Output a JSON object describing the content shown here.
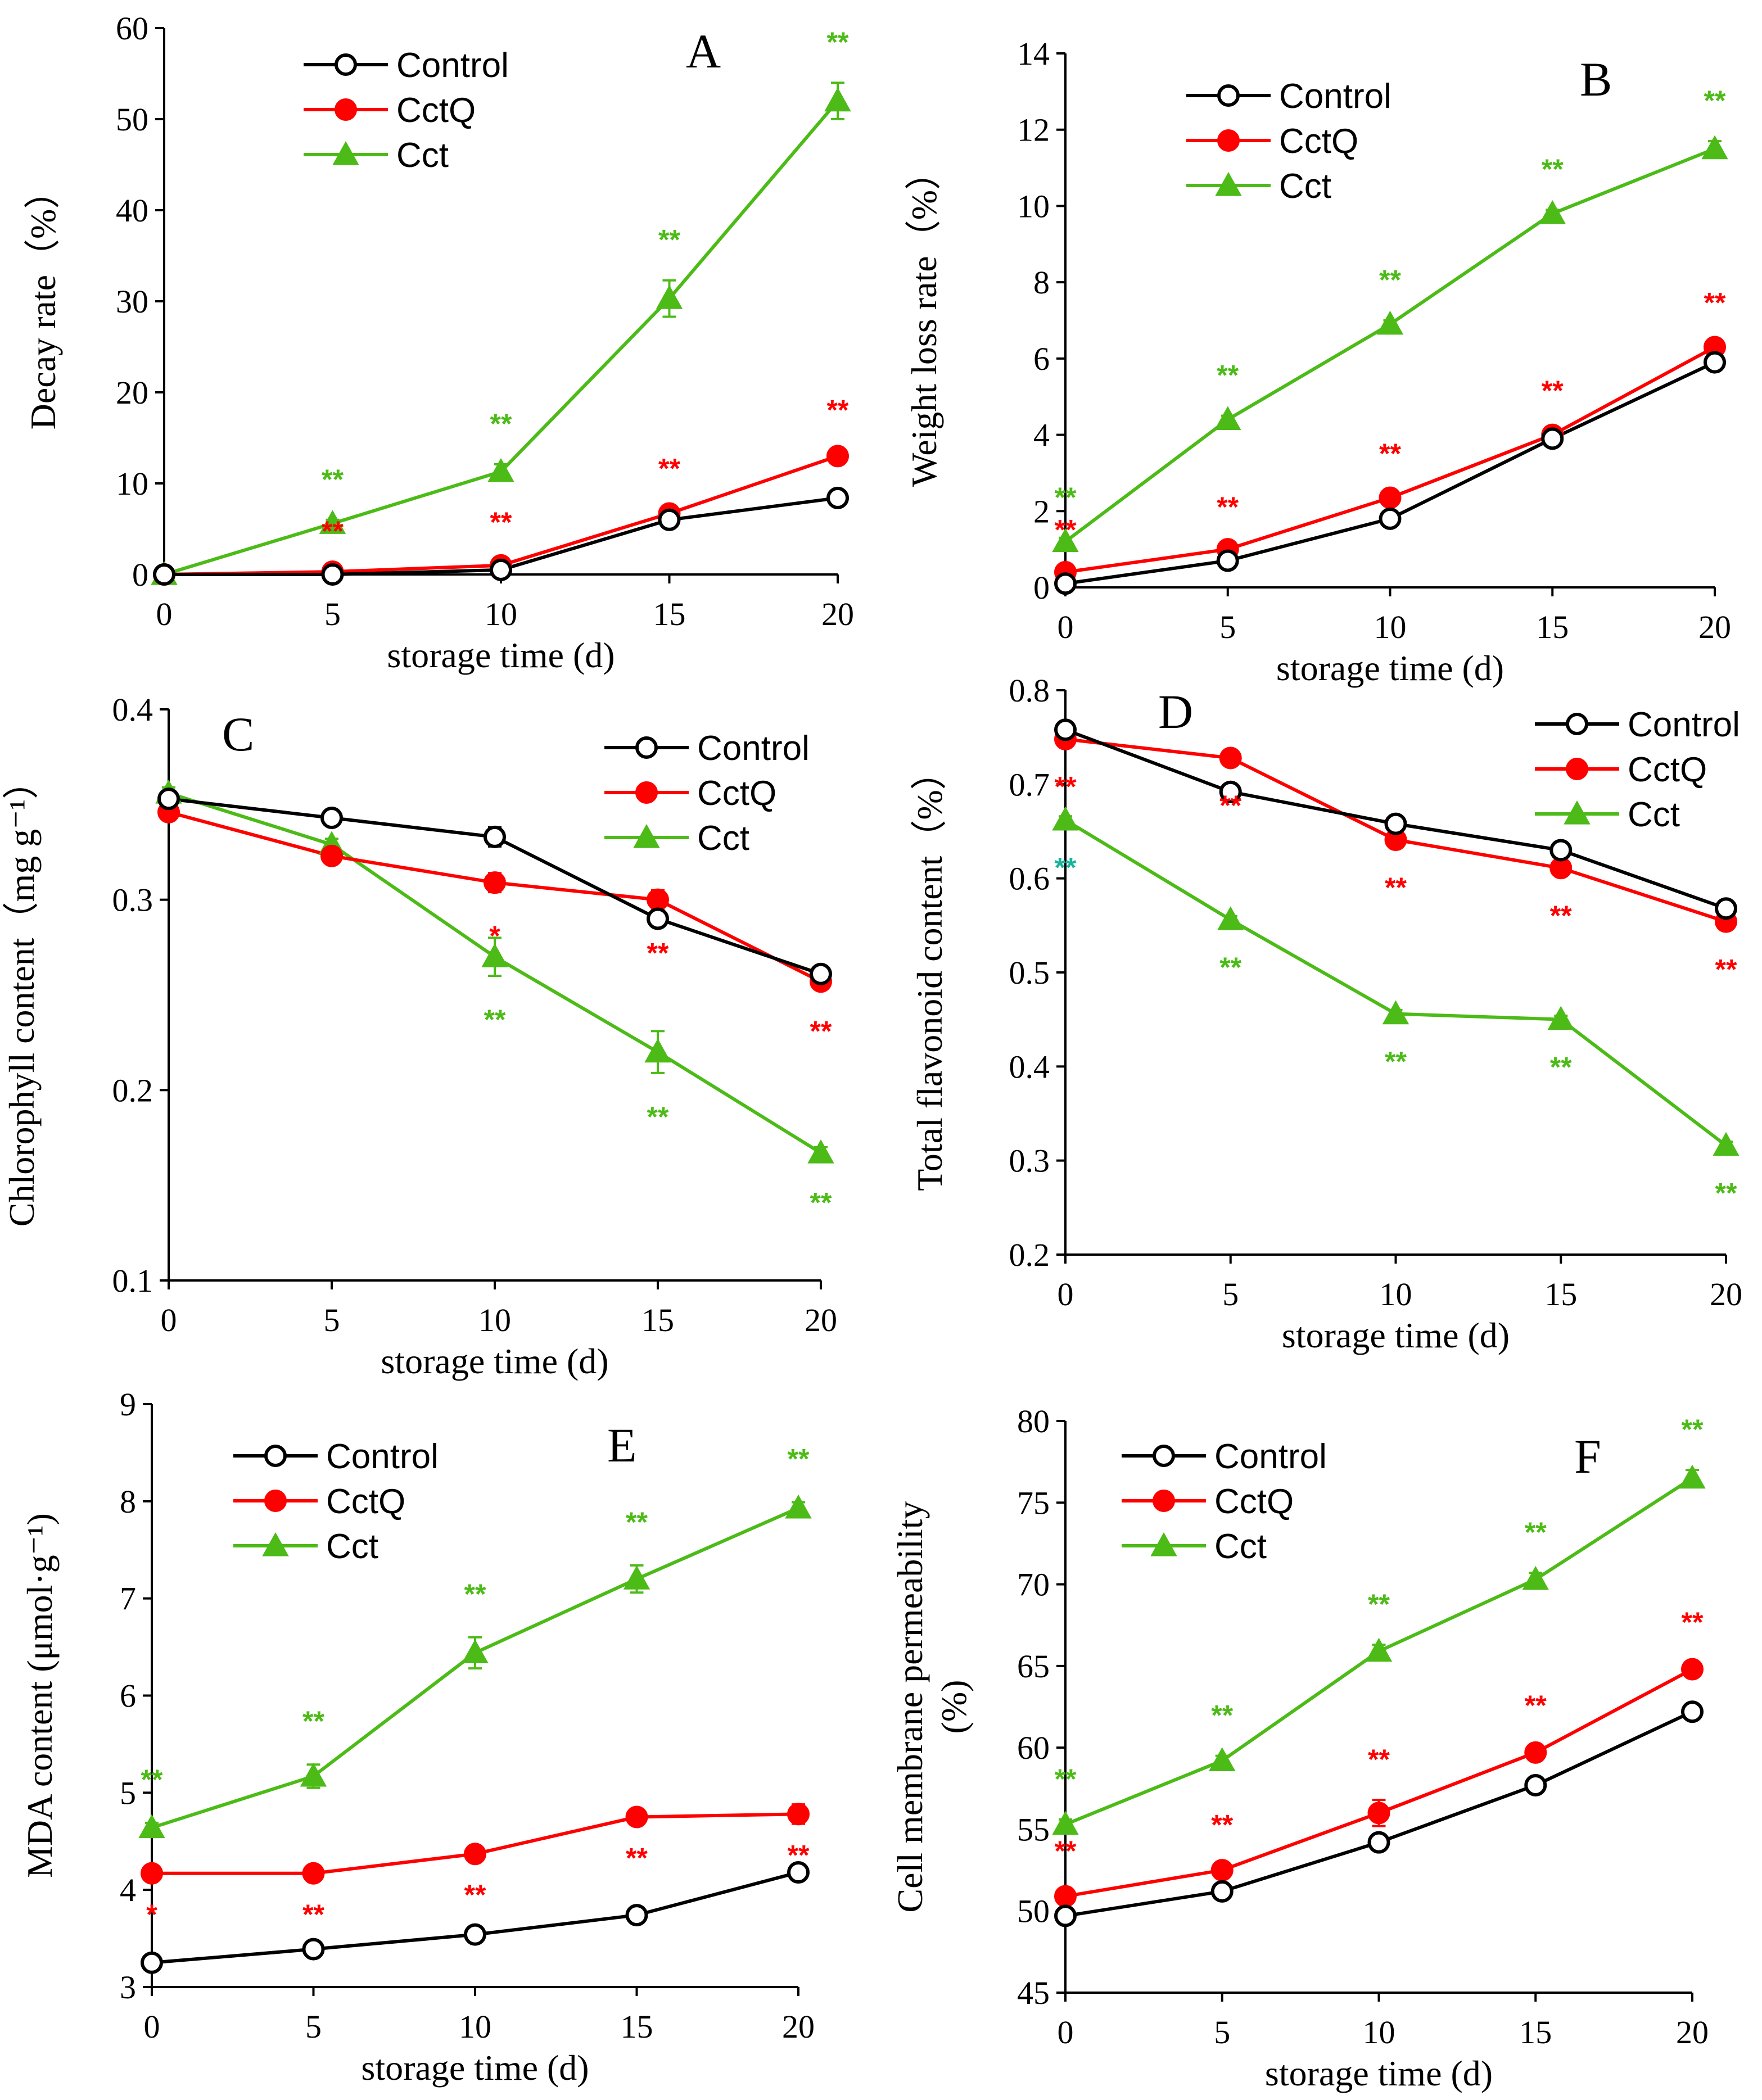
{
  "colors": {
    "control": "#000000",
    "cctq": "#ff0000",
    "cct": "#4cbb17",
    "cct_alt_mark": "#19b39a"
  },
  "chart_data": [
    {
      "type": "line",
      "panel": "A",
      "xlabel": "storage time (d)",
      "ylabel": "Decay rate（%）",
      "ylabel_lines": [
        "Decay rate（%）"
      ],
      "x": [
        0,
        5,
        10,
        15,
        20
      ],
      "x_tick_labels": [
        "0",
        "5",
        "10",
        "15",
        "20"
      ],
      "xlim": [
        0,
        20
      ],
      "ylim": [
        0,
        60
      ],
      "y_ticks": [
        0,
        10,
        20,
        30,
        40,
        50,
        60
      ],
      "y_tick_labels": [
        "0",
        "10",
        "20",
        "30",
        "40",
        "50",
        "60"
      ],
      "legend_position": "top-center",
      "series": [
        {
          "name": "Control",
          "key": "control",
          "values": [
            0,
            0,
            0.5,
            6,
            8.4
          ],
          "errors": [
            0,
            0,
            0,
            0.4,
            0.4
          ]
        },
        {
          "name": "CctQ",
          "key": "cctq",
          "values": [
            0,
            0.3,
            1,
            6.7,
            13
          ],
          "errors": [
            0,
            0,
            0.3,
            0.5,
            0.6
          ],
          "significance": [
            "",
            "**",
            "**",
            "**",
            "**"
          ]
        },
        {
          "name": "Cct",
          "key": "cct",
          "values": [
            0,
            5.6,
            11.3,
            30.3,
            52
          ],
          "errors": [
            0,
            0.4,
            0.8,
            2,
            2
          ],
          "significance": [
            "",
            "**",
            "**",
            "**",
            "**"
          ]
        }
      ]
    },
    {
      "type": "line",
      "panel": "B",
      "xlabel": "storage time (d)",
      "ylabel": "Weight loss rate（%）",
      "ylabel_lines": [
        "Weight loss rate（%）"
      ],
      "x": [
        0,
        5,
        10,
        15,
        20
      ],
      "x_tick_labels": [
        "0",
        "5",
        "10",
        "15",
        "20"
      ],
      "xlim": [
        0,
        20
      ],
      "ylim": [
        0,
        14
      ],
      "y_ticks": [
        0,
        2,
        4,
        6,
        8,
        10,
        12,
        14
      ],
      "y_tick_labels": [
        "0",
        "2",
        "4",
        "6",
        "8",
        "10",
        "12",
        "14"
      ],
      "legend_position": "top-center",
      "series": [
        {
          "name": "Control",
          "key": "control",
          "values": [
            0.1,
            0.7,
            1.8,
            3.9,
            5.9
          ],
          "errors": [
            0.05,
            0.05,
            0.1,
            0.1,
            0.2
          ]
        },
        {
          "name": "CctQ",
          "key": "cctq",
          "values": [
            0.4,
            1,
            2.35,
            4,
            6.3
          ],
          "errors": [
            0.05,
            0.05,
            0.1,
            0.1,
            0.1
          ],
          "significance": [
            "**",
            "**",
            "**",
            "**",
            "**"
          ]
        },
        {
          "name": "Cct",
          "key": "cct",
          "values": [
            1.2,
            4.4,
            6.9,
            9.8,
            11.5
          ],
          "errors": [
            0.1,
            0.1,
            0.1,
            0.1,
            0.2
          ],
          "significance": [
            "**",
            "**",
            "**",
            "**",
            "**"
          ]
        }
      ]
    },
    {
      "type": "line",
      "panel": "C",
      "xlabel": "storage time (d)",
      "ylabel": "Chlorophyll content（mg g⁻¹）",
      "ylabel_lines": [
        "Chlorophyll content（mg g⁻¹）"
      ],
      "x": [
        0,
        5,
        10,
        15,
        20
      ],
      "x_tick_labels": [
        "0",
        "5",
        "10",
        "15",
        "20"
      ],
      "xlim": [
        0,
        20
      ],
      "ylim": [
        0.1,
        0.4
      ],
      "y_ticks": [
        0.1,
        0.2,
        0.3,
        0.4
      ],
      "y_tick_labels": [
        "0.1",
        "0.2",
        "0.3",
        "0.4"
      ],
      "legend_position": "top-right",
      "series": [
        {
          "name": "Control",
          "key": "control",
          "values": [
            0.353,
            0.343,
            0.333,
            0.29,
            0.261
          ],
          "errors": [
            0.003,
            0.004,
            0.005,
            0.004,
            0.003
          ]
        },
        {
          "name": "CctQ",
          "key": "cctq",
          "values": [
            0.346,
            0.323,
            0.309,
            0.3,
            0.257
          ],
          "errors": [
            0.003,
            0.003,
            0.005,
            0.005,
            0.003
          ],
          "significance": [
            "",
            "",
            "*",
            "**",
            "**"
          ]
        },
        {
          "name": "Cct",
          "key": "cct",
          "values": [
            0.356,
            0.329,
            0.27,
            0.22,
            0.167
          ],
          "errors": [
            0.003,
            0.003,
            0.01,
            0.011,
            0.003
          ],
          "significance": [
            "",
            "",
            "**",
            "**",
            "**"
          ]
        }
      ]
    },
    {
      "type": "line",
      "panel": "D",
      "xlabel": "storage time (d)",
      "ylabel": "Total flavonoid content（%）",
      "ylabel_lines": [
        "Total flavonoid content（%）"
      ],
      "x": [
        0,
        5,
        10,
        15,
        20
      ],
      "x_tick_labels": [
        "0",
        "5",
        "10",
        "15",
        "20"
      ],
      "xlim": [
        0,
        20
      ],
      "ylim": [
        0.2,
        0.8
      ],
      "y_ticks": [
        0.2,
        0.3,
        0.4,
        0.5,
        0.6,
        0.7,
        0.8
      ],
      "y_tick_labels": [
        "0.2",
        "0.3",
        "0.4",
        "0.5",
        "0.6",
        "0.7",
        "0.8"
      ],
      "legend_position": "top-right",
      "series": [
        {
          "name": "Control",
          "key": "control",
          "values": [
            0.758,
            0.692,
            0.658,
            0.63,
            0.568
          ],
          "errors": [
            0.004,
            0.004,
            0.004,
            0.004,
            0.004
          ]
        },
        {
          "name": "CctQ",
          "key": "cctq",
          "values": [
            0.748,
            0.728,
            0.641,
            0.611,
            0.554
          ],
          "errors": [
            0.004,
            0.004,
            0.004,
            0.004,
            0.004
          ],
          "significance": [
            "**",
            "**",
            "**",
            "**",
            "**"
          ]
        },
        {
          "name": "Cct",
          "key": "cct",
          "values": [
            0.662,
            0.556,
            0.456,
            0.45,
            0.316
          ],
          "errors": [
            0.004,
            0.004,
            0.004,
            0.004,
            0.004
          ],
          "significance": [
            "**",
            "**",
            "**",
            "**",
            "**"
          ]
        }
      ]
    },
    {
      "type": "line",
      "panel": "E",
      "xlabel": "storage time (d)",
      "ylabel": "MDA content (μmol·g⁻¹)",
      "ylabel_lines": [
        "MDA content (μmol·g⁻¹)"
      ],
      "x": [
        0,
        5,
        10,
        15,
        20
      ],
      "x_tick_labels": [
        "0",
        "5",
        "10",
        "15",
        "20"
      ],
      "xlim": [
        0,
        20
      ],
      "ylim": [
        3,
        9
      ],
      "y_ticks": [
        3,
        4,
        5,
        6,
        7,
        8,
        9
      ],
      "y_tick_labels": [
        "3",
        "4",
        "5",
        "6",
        "7",
        "8",
        "9"
      ],
      "legend_position": "top-center",
      "series": [
        {
          "name": "Control",
          "key": "control",
          "values": [
            3.25,
            3.39,
            3.54,
            3.74,
            4.18
          ],
          "errors": [
            0.08,
            0.04,
            0.04,
            0.07,
            0.04
          ]
        },
        {
          "name": "CctQ",
          "key": "cctq",
          "values": [
            4.17,
            4.17,
            4.37,
            4.75,
            4.78
          ],
          "errors": [
            0.04,
            0.04,
            0.05,
            0.05,
            0.1
          ],
          "significance": [
            "*",
            "**",
            "**",
            "**",
            "**"
          ]
        },
        {
          "name": "Cct",
          "key": "cct",
          "values": [
            4.64,
            5.17,
            6.44,
            7.2,
            7.93
          ],
          "errors": [
            0.05,
            0.12,
            0.16,
            0.14,
            0.06
          ],
          "significance": [
            "**",
            "**",
            "**",
            "**",
            "**"
          ]
        }
      ]
    },
    {
      "type": "line",
      "panel": "F",
      "xlabel": "storage time (d)",
      "ylabel": "Cell membrane permeability (%)",
      "ylabel_lines": [
        "Cell membrane permeability",
        "(%)"
      ],
      "x": [
        0,
        5,
        10,
        15,
        20
      ],
      "x_tick_labels": [
        "0",
        "5",
        "10",
        "15",
        "20"
      ],
      "xlim": [
        0,
        20
      ],
      "ylim": [
        45,
        80
      ],
      "y_ticks": [
        45,
        50,
        55,
        60,
        65,
        70,
        75,
        80
      ],
      "y_tick_labels": [
        "45",
        "50",
        "55",
        "60",
        "65",
        "70",
        "75",
        "80"
      ],
      "legend_position": "top-center",
      "series": [
        {
          "name": "Control",
          "key": "control",
          "values": [
            49.7,
            51.2,
            54.2,
            57.7,
            62.2
          ],
          "errors": [
            0.3,
            0.3,
            0.4,
            0.4,
            0.4
          ]
        },
        {
          "name": "CctQ",
          "key": "cctq",
          "values": [
            50.9,
            52.5,
            56,
            59.7,
            64.8
          ],
          "errors": [
            0.3,
            0.3,
            0.8,
            0.4,
            0.4
          ],
          "significance": [
            "**",
            "**",
            "**",
            "**",
            "**"
          ]
        },
        {
          "name": "Cct",
          "key": "cct",
          "values": [
            55.3,
            59.2,
            65.9,
            70.3,
            76.5
          ],
          "errors": [
            0.3,
            0.3,
            0.4,
            0.4,
            0.5
          ],
          "significance": [
            "**",
            "**",
            "**",
            "**",
            "**"
          ]
        }
      ]
    }
  ]
}
